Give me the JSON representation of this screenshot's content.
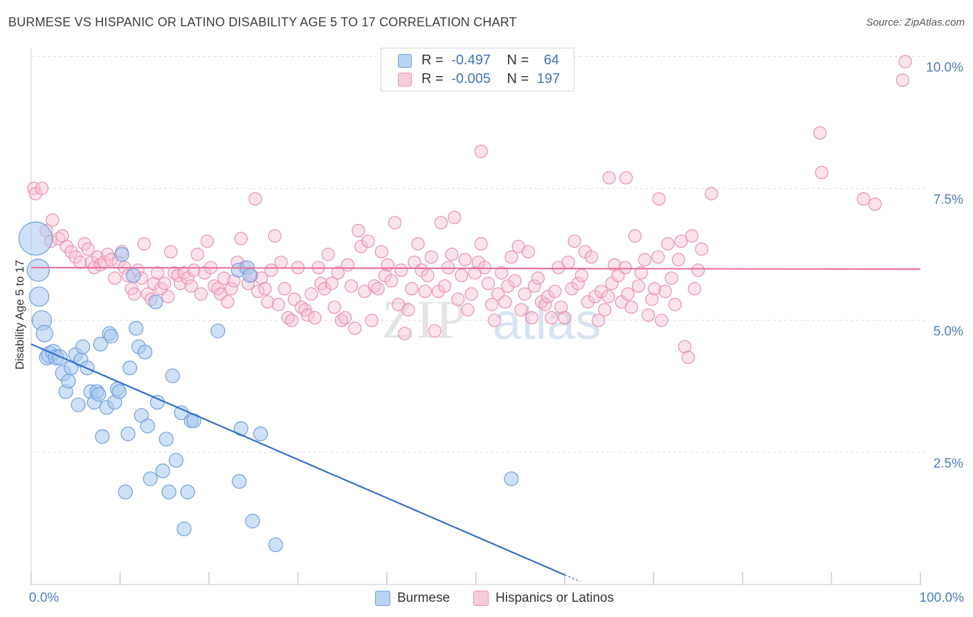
{
  "title": "BURMESE VS HISPANIC OR LATINO DISABILITY AGE 5 TO 17 CORRELATION CHART",
  "source": "Source: ZipAtlas.com",
  "watermark": {
    "zip": "ZIP",
    "atlas": "atlas"
  },
  "legend": {
    "rows": [
      {
        "r_label": "R =",
        "r_value": "-0.497",
        "n_label": "N =",
        "n_value": "64"
      },
      {
        "r_label": "R =",
        "r_value": "-0.005",
        "n_label": "N =",
        "n_value": "197"
      }
    ]
  },
  "bottom_legend": [
    "Burmese",
    "Hispanics or Latinos"
  ],
  "colors": {
    "burmese_fill": "#a8c8f0",
    "burmese_stroke": "#6f9fdc",
    "burmese_line": "#2f6fd0",
    "hispanic_fill": "#f6c1d3",
    "hispanic_stroke": "#ec8fb0",
    "hispanic_line": "#e8729a",
    "axis_text": "#4a7cc7",
    "grid": "#dddddd"
  },
  "chart_data": {
    "type": "scatter",
    "title": "BURMESE VS HISPANIC OR LATINO DISABILITY AGE 5 TO 17 CORRELATION CHART",
    "xlabel": "",
    "ylabel": "Disability Age 5 to 17",
    "xlim": [
      0,
      100
    ],
    "ylim": [
      0,
      10.5
    ],
    "x_tick_labels": [
      "0.0%",
      "100.0%"
    ],
    "y_ticks": [
      2.5,
      5.0,
      7.5,
      10.0
    ],
    "y_tick_labels": [
      "2.5%",
      "5.0%",
      "7.5%",
      "10.0%"
    ],
    "series": [
      {
        "name": "Burmese",
        "r": -0.497,
        "n": 64,
        "trend": {
          "x0": 0,
          "y0": 4.55,
          "x1": 60,
          "y1": 0.18
        },
        "points": [
          [
            0.5,
            6.55,
            24
          ],
          [
            0.8,
            5.95,
            16
          ],
          [
            0.9,
            5.45,
            14
          ],
          [
            1.2,
            5.0,
            14
          ],
          [
            1.5,
            4.75,
            12
          ],
          [
            1.8,
            4.3,
            11
          ],
          [
            2.1,
            4.35,
            12
          ],
          [
            2.5,
            4.4,
            11
          ],
          [
            2.8,
            4.3,
            11
          ],
          [
            3.2,
            4.3,
            11
          ],
          [
            3.6,
            4.0,
            11
          ],
          [
            3.9,
            3.65,
            10
          ],
          [
            4.2,
            3.85,
            10
          ],
          [
            4.5,
            4.1,
            10
          ],
          [
            5.0,
            4.35,
            10
          ],
          [
            5.3,
            3.4,
            10
          ],
          [
            5.6,
            4.25,
            10
          ],
          [
            5.8,
            4.5,
            10
          ],
          [
            6.3,
            4.1,
            10
          ],
          [
            6.7,
            3.65,
            10
          ],
          [
            7.1,
            3.45,
            10
          ],
          [
            7.4,
            3.65,
            10
          ],
          [
            7.6,
            3.6,
            10
          ],
          [
            7.8,
            4.55,
            10
          ],
          [
            8.0,
            2.8,
            10
          ],
          [
            8.5,
            3.35,
            10
          ],
          [
            8.8,
            4.75,
            10
          ],
          [
            9.0,
            4.7,
            10
          ],
          [
            9.4,
            3.45,
            10
          ],
          [
            9.7,
            3.7,
            10
          ],
          [
            9.9,
            3.65,
            10
          ],
          [
            10.2,
            6.25,
            10
          ],
          [
            10.6,
            1.75,
            10
          ],
          [
            10.9,
            2.85,
            10
          ],
          [
            11.1,
            4.1,
            10
          ],
          [
            11.5,
            5.85,
            10
          ],
          [
            11.8,
            4.85,
            10
          ],
          [
            12.1,
            4.5,
            10
          ],
          [
            12.4,
            3.2,
            10
          ],
          [
            12.8,
            4.4,
            10
          ],
          [
            13.1,
            3.0,
            10
          ],
          [
            13.4,
            2.0,
            10
          ],
          [
            14.0,
            5.35,
            10
          ],
          [
            14.2,
            3.45,
            10
          ],
          [
            14.8,
            2.15,
            10
          ],
          [
            15.2,
            2.75,
            10
          ],
          [
            15.5,
            1.75,
            10
          ],
          [
            15.9,
            3.95,
            10
          ],
          [
            16.3,
            2.35,
            10
          ],
          [
            16.9,
            3.25,
            10
          ],
          [
            17.2,
            1.05,
            10
          ],
          [
            17.6,
            1.75,
            10
          ],
          [
            18.0,
            3.1,
            10
          ],
          [
            18.3,
            3.1,
            10
          ],
          [
            21.0,
            4.8,
            10
          ],
          [
            23.3,
            5.95,
            10
          ],
          [
            23.4,
            1.95,
            10
          ],
          [
            23.6,
            2.95,
            10
          ],
          [
            24.3,
            6.0,
            10
          ],
          [
            24.6,
            5.85,
            10
          ],
          [
            24.9,
            1.2,
            10
          ],
          [
            25.8,
            2.85,
            10
          ],
          [
            27.5,
            0.75,
            10
          ],
          [
            54.0,
            2.0,
            10
          ]
        ]
      },
      {
        "name": "Hispanics or Latinos",
        "r": -0.005,
        "n": 197,
        "trend": {
          "x0": 0,
          "y0": 6.0,
          "x1": 100,
          "y1": 5.97
        },
        "points": [
          [
            0.3,
            7.5
          ],
          [
            0.5,
            7.4
          ],
          [
            1.2,
            7.5
          ],
          [
            1.7,
            6.7
          ],
          [
            2.2,
            6.5
          ],
          [
            2.4,
            6.9
          ],
          [
            3.1,
            6.55
          ],
          [
            3.5,
            6.6
          ],
          [
            4.0,
            6.4
          ],
          [
            4.5,
            6.3
          ],
          [
            5.0,
            6.2
          ],
          [
            5.5,
            6.1
          ],
          [
            6.0,
            6.45
          ],
          [
            6.4,
            6.35
          ],
          [
            6.8,
            6.1
          ],
          [
            7.1,
            6.0
          ],
          [
            7.5,
            6.2
          ],
          [
            7.8,
            6.05
          ],
          [
            8.2,
            6.1
          ],
          [
            8.6,
            6.25
          ],
          [
            9.0,
            6.15
          ],
          [
            9.4,
            5.8
          ],
          [
            9.8,
            6.1
          ],
          [
            10.2,
            6.3
          ],
          [
            10.5,
            6.0
          ],
          [
            10.9,
            5.85
          ],
          [
            11.3,
            5.6
          ],
          [
            11.6,
            5.5
          ],
          [
            12.0,
            5.95
          ],
          [
            12.4,
            5.8
          ],
          [
            12.7,
            6.45
          ],
          [
            13.1,
            5.5
          ],
          [
            13.5,
            5.4
          ],
          [
            13.8,
            5.7
          ],
          [
            14.2,
            5.9
          ],
          [
            14.6,
            5.6
          ],
          [
            15.0,
            5.7
          ],
          [
            15.4,
            5.45
          ],
          [
            15.7,
            6.3
          ],
          [
            16.1,
            5.9
          ],
          [
            16.5,
            5.85
          ],
          [
            16.8,
            5.7
          ],
          [
            17.2,
            5.9
          ],
          [
            17.6,
            5.8
          ],
          [
            18.0,
            5.65
          ],
          [
            18.3,
            5.95
          ],
          [
            18.7,
            6.25
          ],
          [
            19.1,
            5.5
          ],
          [
            19.5,
            5.9
          ],
          [
            19.8,
            6.5
          ],
          [
            20.2,
            6.0
          ],
          [
            20.6,
            5.65
          ],
          [
            21.0,
            5.6
          ],
          [
            21.3,
            5.5
          ],
          [
            21.7,
            5.8
          ],
          [
            22.1,
            5.35
          ],
          [
            22.5,
            5.6
          ],
          [
            22.8,
            5.75
          ],
          [
            23.2,
            6.1
          ],
          [
            23.6,
            6.55
          ],
          [
            24.0,
            6.0
          ],
          [
            24.4,
            5.7
          ],
          [
            24.8,
            5.85
          ],
          [
            25.2,
            7.3
          ],
          [
            25.5,
            5.55
          ],
          [
            25.9,
            5.8
          ],
          [
            26.3,
            5.6
          ],
          [
            26.6,
            5.35
          ],
          [
            27.0,
            5.95
          ],
          [
            27.4,
            6.6
          ],
          [
            27.8,
            5.3
          ],
          [
            28.1,
            6.1
          ],
          [
            28.5,
            5.6
          ],
          [
            28.9,
            5.05
          ],
          [
            29.3,
            5.0
          ],
          [
            29.6,
            5.4
          ],
          [
            30.0,
            6.0
          ],
          [
            30.4,
            5.25
          ],
          [
            30.8,
            5.2
          ],
          [
            31.1,
            5.1
          ],
          [
            31.5,
            5.5
          ],
          [
            31.9,
            5.05
          ],
          [
            32.3,
            6.0
          ],
          [
            32.6,
            5.7
          ],
          [
            33.0,
            5.6
          ],
          [
            33.4,
            6.25
          ],
          [
            33.8,
            5.7
          ],
          [
            34.1,
            5.25
          ],
          [
            34.5,
            5.9
          ],
          [
            34.9,
            5.0
          ],
          [
            35.3,
            5.05
          ],
          [
            35.6,
            6.05
          ],
          [
            36.0,
            5.65
          ],
          [
            36.4,
            4.85
          ],
          [
            36.8,
            6.7
          ],
          [
            37.1,
            6.4
          ],
          [
            37.5,
            5.55
          ],
          [
            37.9,
            6.5
          ],
          [
            38.3,
            5.0
          ],
          [
            38.6,
            5.65
          ],
          [
            39.0,
            5.6
          ],
          [
            39.4,
            6.3
          ],
          [
            39.8,
            5.85
          ],
          [
            40.1,
            6.05
          ],
          [
            40.5,
            5.75
          ],
          [
            40.9,
            6.85
          ],
          [
            41.3,
            5.3
          ],
          [
            41.6,
            5.95
          ],
          [
            42.0,
            4.75
          ],
          [
            42.4,
            5.2
          ],
          [
            42.8,
            5.6
          ],
          [
            43.1,
            6.1
          ],
          [
            43.5,
            6.45
          ],
          [
            43.9,
            5.95
          ],
          [
            44.3,
            5.55
          ],
          [
            44.6,
            5.85
          ],
          [
            45.0,
            6.2
          ],
          [
            45.4,
            4.8
          ],
          [
            45.8,
            5.55
          ],
          [
            46.1,
            6.85
          ],
          [
            46.5,
            5.65
          ],
          [
            46.9,
            6.0
          ],
          [
            47.3,
            6.25
          ],
          [
            47.6,
            6.95
          ],
          [
            48.0,
            5.4
          ],
          [
            48.4,
            5.85
          ],
          [
            48.8,
            6.15
          ],
          [
            49.1,
            5.2
          ],
          [
            49.5,
            5.5
          ],
          [
            49.9,
            5.9
          ],
          [
            50.3,
            6.1
          ],
          [
            50.6,
            6.45
          ],
          [
            51.0,
            6.0
          ],
          [
            51.4,
            5.7
          ],
          [
            51.8,
            5.3
          ],
          [
            52.1,
            5.0
          ],
          [
            52.5,
            5.5
          ],
          [
            52.9,
            5.9
          ],
          [
            53.3,
            5.35
          ],
          [
            53.6,
            5.65
          ],
          [
            54.0,
            6.2
          ],
          [
            54.4,
            5.75
          ],
          [
            54.8,
            6.4
          ],
          [
            55.1,
            5.2
          ],
          [
            55.5,
            5.5
          ],
          [
            55.9,
            6.3
          ],
          [
            56.3,
            5.05
          ],
          [
            56.6,
            5.65
          ],
          [
            57.0,
            5.8
          ],
          [
            57.4,
            5.35
          ],
          [
            57.8,
            5.3
          ],
          [
            58.1,
            5.45
          ],
          [
            58.5,
            5.05
          ],
          [
            58.9,
            5.55
          ],
          [
            59.3,
            6.0
          ],
          [
            59.6,
            5.25
          ],
          [
            60.0,
            5.05
          ],
          [
            60.4,
            6.1
          ],
          [
            60.8,
            5.6
          ],
          [
            61.1,
            6.5
          ],
          [
            61.5,
            5.7
          ],
          [
            61.9,
            5.85
          ],
          [
            62.3,
            6.3
          ],
          [
            62.6,
            5.35
          ],
          [
            63.0,
            6.2
          ],
          [
            63.4,
            5.45
          ],
          [
            63.8,
            5.0
          ],
          [
            64.1,
            5.55
          ],
          [
            64.5,
            5.2
          ],
          [
            64.9,
            5.45
          ],
          [
            65.3,
            5.7
          ],
          [
            65.6,
            6.05
          ],
          [
            66.0,
            5.85
          ],
          [
            66.4,
            5.35
          ],
          [
            66.8,
            6.0
          ],
          [
            67.1,
            5.5
          ],
          [
            67.5,
            5.25
          ],
          [
            67.9,
            6.6
          ],
          [
            68.3,
            5.65
          ],
          [
            68.6,
            5.9
          ],
          [
            69.0,
            6.15
          ],
          [
            69.4,
            5.1
          ],
          [
            69.8,
            5.4
          ],
          [
            70.1,
            5.6
          ],
          [
            70.5,
            6.2
          ],
          [
            70.9,
            5.0
          ],
          [
            71.3,
            5.55
          ],
          [
            71.6,
            6.45
          ],
          [
            72.0,
            5.8
          ],
          [
            72.4,
            5.3
          ],
          [
            72.8,
            6.15
          ],
          [
            73.1,
            6.5
          ],
          [
            73.5,
            4.5
          ],
          [
            73.9,
            4.3
          ],
          [
            74.3,
            6.6
          ],
          [
            74.6,
            5.6
          ],
          [
            75.0,
            5.95
          ],
          [
            75.4,
            6.35
          ]
        ]
      }
    ],
    "outliers_hispanic": [
      [
        50.6,
        8.2
      ],
      [
        88.7,
        8.55
      ],
      [
        98.0,
        9.55
      ],
      [
        98.3,
        9.9
      ],
      [
        88.9,
        7.8
      ],
      [
        65.0,
        7.7
      ],
      [
        66.9,
        7.7
      ],
      [
        70.6,
        7.3
      ],
      [
        76.5,
        7.4
      ],
      [
        94.9,
        7.2
      ],
      [
        93.6,
        7.3
      ]
    ]
  }
}
